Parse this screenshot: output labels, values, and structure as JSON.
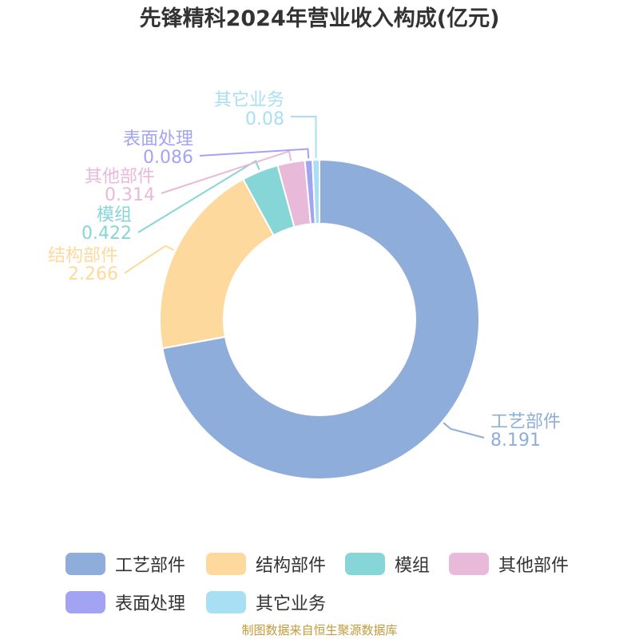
{
  "chart_data": {
    "type": "pie",
    "title": "先锋精科2024年营业收入构成(亿元)",
    "categories": [
      "工艺部件",
      "结构部件",
      "模组",
      "其他部件",
      "表面处理",
      "其它业务"
    ],
    "values": [
      8.191,
      2.266,
      0.422,
      0.314,
      0.086,
      0.08
    ],
    "value_labels": [
      "8.191",
      "2.266",
      "0.422",
      "0.314",
      "0.086",
      "0.08"
    ],
    "colors": [
      "#8eaddb",
      "#fdd99d",
      "#86d5d7",
      "#e8b9d9",
      "#a3a3f4",
      "#a8dff5"
    ],
    "donut": true,
    "legend_position": "bottom"
  },
  "source_note": "制图数据来自恒生聚源数据库"
}
